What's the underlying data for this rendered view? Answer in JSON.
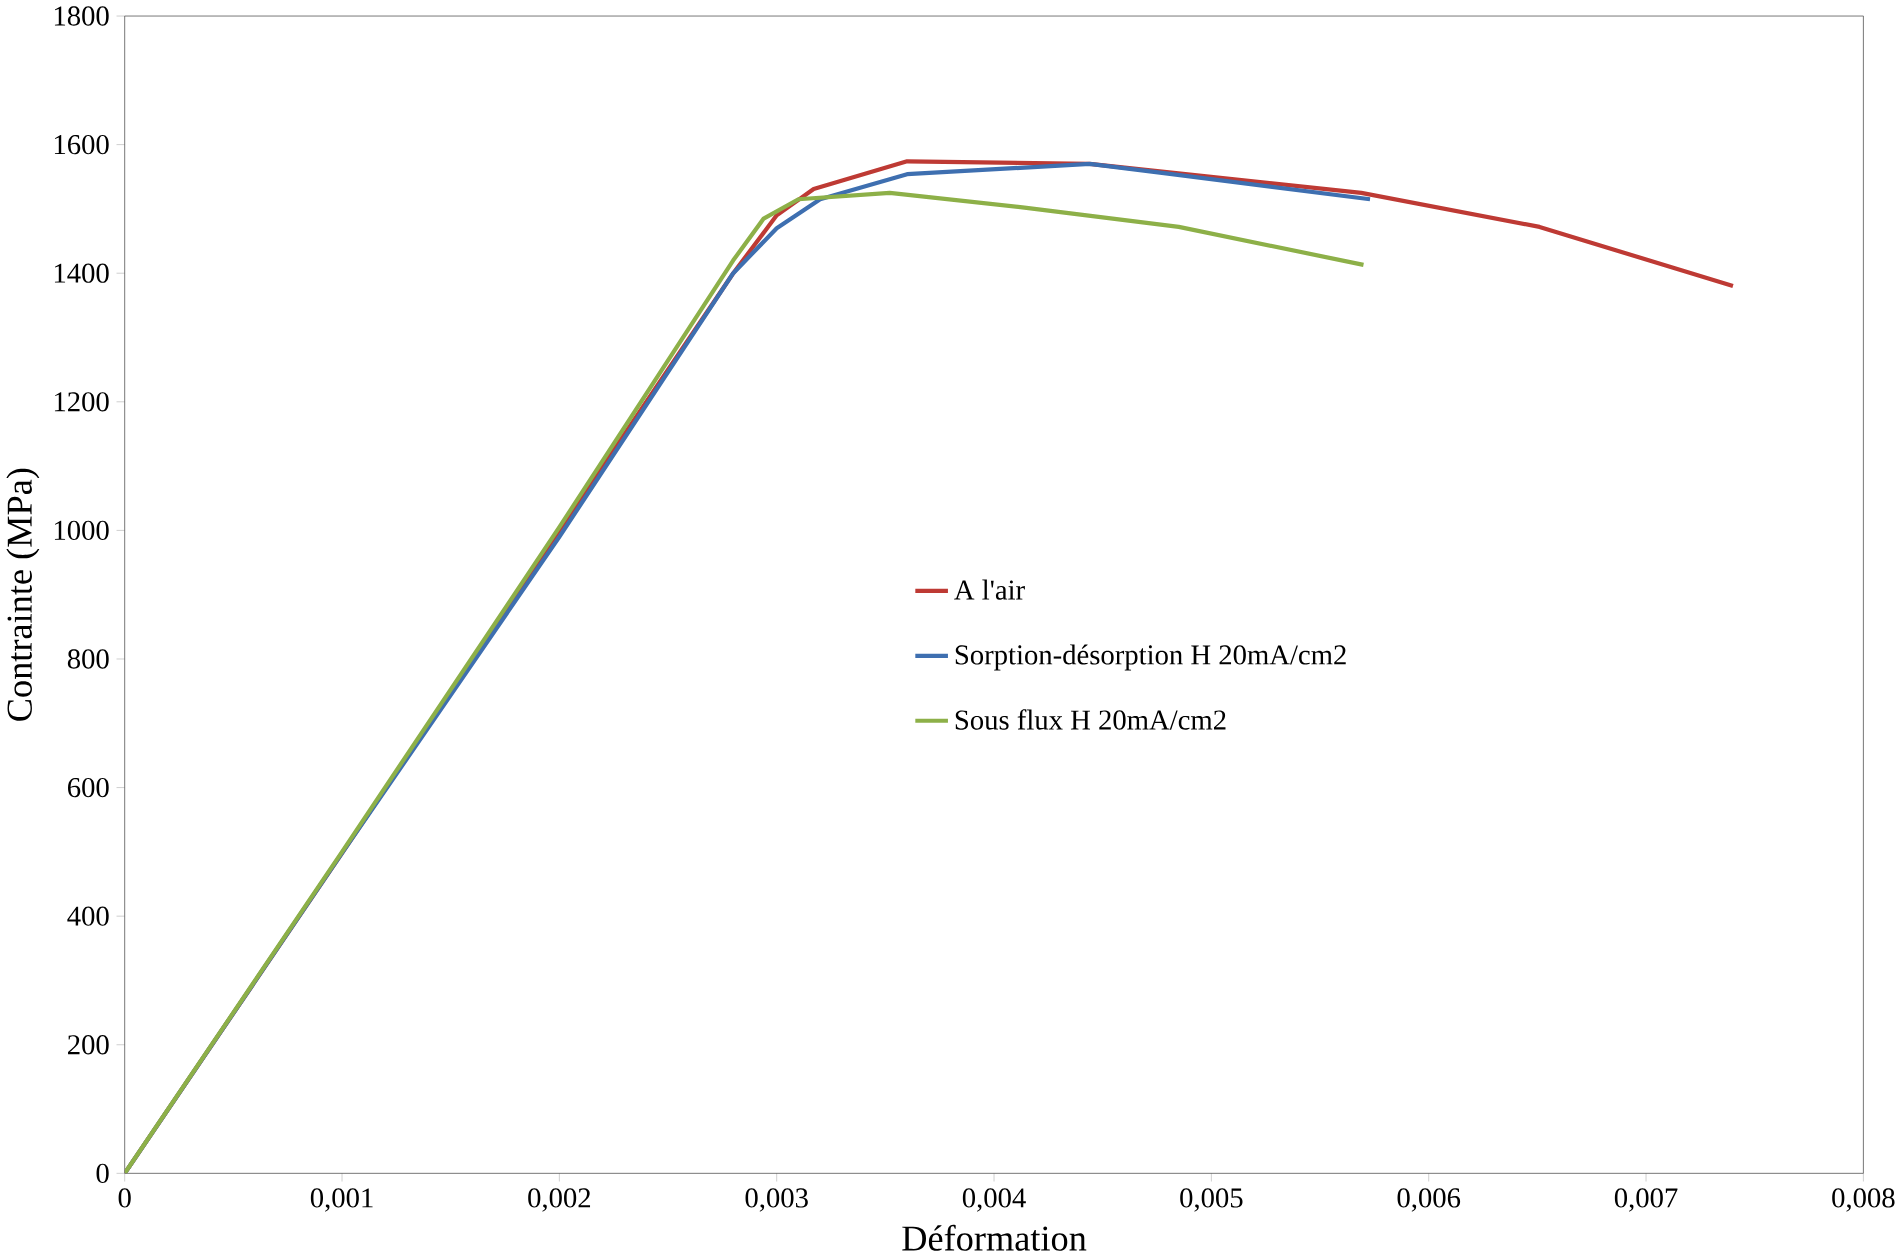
{
  "chart_data": {
    "type": "line",
    "xlabel": "Déformation",
    "ylabel": "Contrainte (MPa)",
    "xlim": [
      0,
      0.008
    ],
    "ylim": [
      0,
      1800
    ],
    "xticks": [
      0,
      {
        "value": 0.001,
        "label": "0,001"
      },
      {
        "value": 0.002,
        "label": "0,002"
      },
      {
        "value": 0.003,
        "label": "0,003"
      },
      {
        "value": 0.004,
        "label": "0,004"
      },
      {
        "value": 0.005,
        "label": "0,005"
      },
      {
        "value": 0.006,
        "label": "0,006"
      },
      {
        "value": 0.007,
        "label": "0,007"
      },
      {
        "value": 0.008,
        "label": "0,008"
      }
    ],
    "yticks": [
      0,
      200,
      400,
      600,
      800,
      1000,
      1200,
      1400,
      1600,
      1800
    ],
    "grid": false,
    "legend": "center",
    "marker": "none",
    "line_style": "solid",
    "series": [
      {
        "name": "A l'air",
        "color": "#be3a34",
        "x": [
          0,
          0.001,
          0.002,
          0.0028,
          0.003,
          0.00317,
          0.0036,
          0.00444,
          0.00569,
          0.00651,
          0.0074
        ],
        "values": [
          0,
          498,
          1000,
          1400,
          1490,
          1531,
          1574,
          1570,
          1525,
          1472,
          1380
        ]
      },
      {
        "name": "Sorption-désorption H 20mA/cm2",
        "color": "#3e6fb0",
        "x": [
          0,
          0.001,
          0.002,
          0.0028,
          0.003,
          0.0032,
          0.0036,
          0.00444,
          0.0048,
          0.00573
        ],
        "values": [
          0,
          498,
          990,
          1400,
          1470,
          1515,
          1554,
          1570,
          1555,
          1515
        ]
      },
      {
        "name": "Sous flux H 20mA/cm2",
        "color": "#8db048",
        "x": [
          0,
          0.001,
          0.002,
          0.0028,
          0.00294,
          0.0031,
          0.00352,
          0.00414,
          0.00485,
          0.0057
        ],
        "values": [
          0,
          500,
          1005,
          1420,
          1485,
          1515,
          1525,
          1502,
          1472,
          1413
        ]
      }
    ]
  }
}
